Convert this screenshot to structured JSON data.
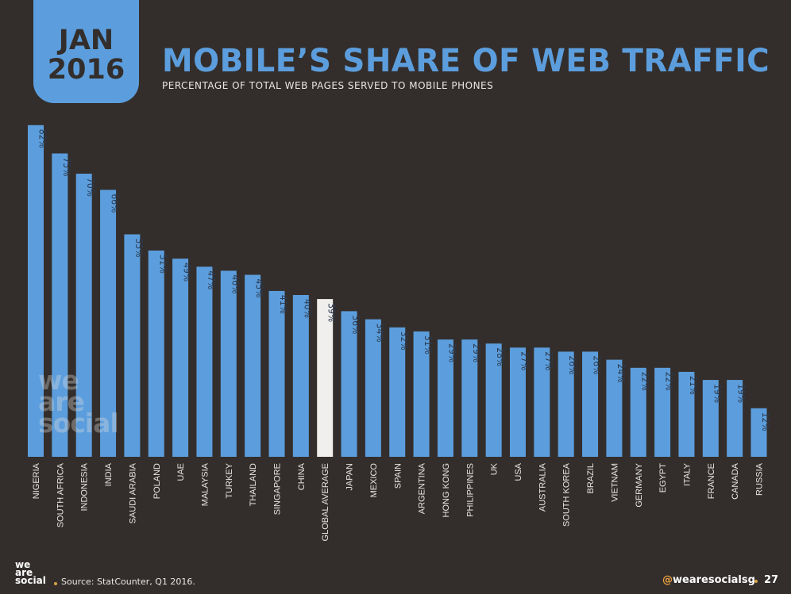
{
  "header": {
    "date_month": "JAN",
    "date_year": "2016",
    "title": "MOBILE’S SHARE OF WEB TRAFFIC",
    "subtitle": "PERCENTAGE OF TOTAL WEB PAGES SERVED TO MOBILE PHONES"
  },
  "watermark": {
    "line1": "we",
    "line2": "are",
    "line3": "social"
  },
  "footer": {
    "logo_line1": "we",
    "logo_line2": "are",
    "logo_line3": "social",
    "source": "Source: StatCounter, Q1 2016.",
    "handle_at": "@",
    "handle": "wearesocialsg",
    "page_number": "27"
  },
  "colors": {
    "background": "#332e2c",
    "bar": "#5c9edd",
    "highlight_bar": "#f0efed",
    "value_label": "#2b3a4f",
    "category_label": "#e8e6e3",
    "accent": "#d9a441"
  },
  "chart_data": {
    "type": "bar",
    "title": "MOBILE’S SHARE OF WEB TRAFFIC",
    "subtitle": "PERCENTAGE OF TOTAL WEB PAGES SERVED TO MOBILE PHONES",
    "xlabel": "",
    "ylabel": "",
    "ylim": [
      0,
      82
    ],
    "grid": false,
    "legend": "none",
    "value_suffix": "%",
    "categories": [
      "NIGERIA",
      "SOUTH AFRICA",
      "INDONESIA",
      "INDIA",
      "SAUDI ARABIA",
      "POLAND",
      "UAE",
      "MALAYSIA",
      "TURKEY",
      "THAILAND",
      "SINGAPORE",
      "CHINA",
      "GLOBAL AVERAGE",
      "JAPAN",
      "MEXICO",
      "SPAIN",
      "ARGENTINA",
      "HONG KONG",
      "PHILIPPINES",
      "UK",
      "USA",
      "AUSTRALIA",
      "SOUTH KOREA",
      "BRAZIL",
      "VIETNAM",
      "GERMANY",
      "EGYPT",
      "ITALY",
      "FRANCE",
      "CANADA",
      "RUSSIA"
    ],
    "values": [
      82,
      75,
      70,
      66,
      55,
      51,
      49,
      47,
      46,
      45,
      41,
      40,
      39,
      36,
      34,
      32,
      31,
      29,
      29,
      28,
      27,
      27,
      26,
      26,
      24,
      22,
      22,
      21,
      19,
      19,
      12
    ],
    "value_labels": [
      "82%",
      "75%",
      "70%",
      "66%",
      "55%",
      "51%",
      "49%",
      "47%",
      "46%",
      "45%",
      "41%",
      "40%",
      "39%",
      "36%",
      "34%",
      "32%",
      "31%",
      "29%",
      "29%",
      "28%",
      "27%",
      "27%",
      "26%",
      "26%",
      "24%",
      "22%",
      "22%",
      "21%",
      "19%",
      "19%",
      "12%"
    ],
    "highlight_category": "GLOBAL AVERAGE"
  }
}
